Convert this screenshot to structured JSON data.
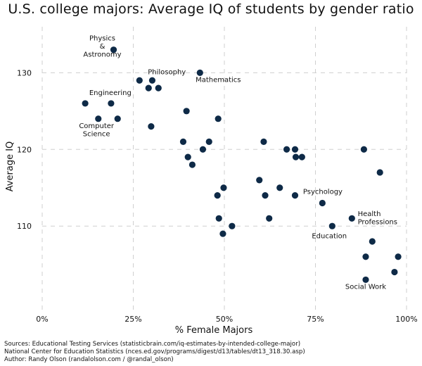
{
  "chart_data": {
    "type": "scatter",
    "title": "U.S. college majors: Average IQ of students by gender ratio",
    "xlabel": "% Female Majors",
    "ylabel": "Average IQ",
    "xlim": [
      0,
      100
    ],
    "ylim": [
      99,
      136
    ],
    "xticks": [
      0,
      25,
      50,
      75,
      100
    ],
    "xtick_labels": [
      "0%",
      "25%",
      "50%",
      "75%",
      "100%"
    ],
    "yticks": [
      110,
      120,
      130
    ],
    "ytick_labels": [
      "110",
      "120",
      "130"
    ],
    "grid": true,
    "point_color": "#0e2a47",
    "points": [
      {
        "x": 19.6,
        "y": 133
      },
      {
        "x": 26.7,
        "y": 129
      },
      {
        "x": 30.2,
        "y": 129
      },
      {
        "x": 29.2,
        "y": 128
      },
      {
        "x": 31.9,
        "y": 128
      },
      {
        "x": 43.3,
        "y": 130
      },
      {
        "x": 11.8,
        "y": 126
      },
      {
        "x": 18.9,
        "y": 126
      },
      {
        "x": 15.4,
        "y": 124
      },
      {
        "x": 20.7,
        "y": 124
      },
      {
        "x": 29.9,
        "y": 123
      },
      {
        "x": 39.6,
        "y": 125
      },
      {
        "x": 48.3,
        "y": 124
      },
      {
        "x": 38.7,
        "y": 121
      },
      {
        "x": 44.1,
        "y": 120
      },
      {
        "x": 45.8,
        "y": 121
      },
      {
        "x": 40.0,
        "y": 119
      },
      {
        "x": 41.2,
        "y": 118
      },
      {
        "x": 60.8,
        "y": 121
      },
      {
        "x": 67.1,
        "y": 120
      },
      {
        "x": 69.4,
        "y": 120
      },
      {
        "x": 69.6,
        "y": 119
      },
      {
        "x": 71.3,
        "y": 119
      },
      {
        "x": 88.3,
        "y": 120
      },
      {
        "x": 92.7,
        "y": 117
      },
      {
        "x": 59.6,
        "y": 116
      },
      {
        "x": 49.8,
        "y": 115
      },
      {
        "x": 48.1,
        "y": 114
      },
      {
        "x": 61.2,
        "y": 114
      },
      {
        "x": 65.2,
        "y": 115
      },
      {
        "x": 69.4,
        "y": 114
      },
      {
        "x": 76.9,
        "y": 113
      },
      {
        "x": 48.5,
        "y": 111
      },
      {
        "x": 52.1,
        "y": 110
      },
      {
        "x": 62.3,
        "y": 111
      },
      {
        "x": 49.6,
        "y": 109
      },
      {
        "x": 79.6,
        "y": 110
      },
      {
        "x": 85.0,
        "y": 111
      },
      {
        "x": 90.6,
        "y": 108
      },
      {
        "x": 88.8,
        "y": 106
      },
      {
        "x": 97.7,
        "y": 106
      },
      {
        "x": 96.7,
        "y": 104
      },
      {
        "x": 88.8,
        "y": 103
      }
    ],
    "annotations": [
      {
        "lines": [
          "Physics",
          "&",
          "Astronomy"
        ],
        "x": 16.5,
        "y": 134.2,
        "anchor": "middle"
      },
      {
        "lines": [
          "Philosophy"
        ],
        "x": 29.0,
        "y": 129.8,
        "anchor": "start"
      },
      {
        "lines": [
          "Mathematics"
        ],
        "x": 42.1,
        "y": 128.8,
        "anchor": "start"
      },
      {
        "lines": [
          "Engineering"
        ],
        "x": 12.9,
        "y": 127.1,
        "anchor": "start"
      },
      {
        "lines": [
          "Computer",
          "Science"
        ],
        "x": 14.9,
        "y": 122.8,
        "anchor": "middle"
      },
      {
        "lines": [
          "Psychology"
        ],
        "x": 71.6,
        "y": 114.2,
        "anchor": "start"
      },
      {
        "lines": [
          "Health",
          "Professions"
        ],
        "x": 86.6,
        "y": 111.3,
        "anchor": "start"
      },
      {
        "lines": [
          "Education"
        ],
        "x": 74.0,
        "y": 108.4,
        "anchor": "start"
      },
      {
        "lines": [
          "Social Work"
        ],
        "x": 88.8,
        "y": 101.8,
        "anchor": "middle"
      }
    ]
  },
  "footer": {
    "line1": "Sources: Educational Testing Services (statisticbrain.com/iq-estimates-by-intended-college-major)",
    "line2": "National Center for Education Statistics (nces.ed.gov/programs/digest/d13/tables/dt13_318.30.asp)",
    "line3": "Author: Randy Olson (randalolson.com / @randal_olson)"
  }
}
